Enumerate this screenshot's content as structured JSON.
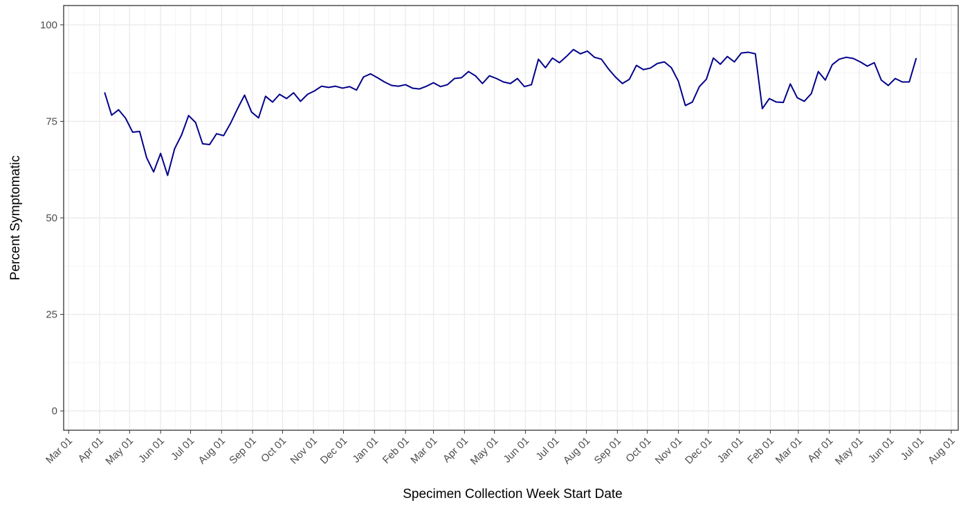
{
  "chart_data": {
    "type": "line",
    "x_label": "Specimen Collection Week Start Date",
    "y_label": "Percent Symptomatic",
    "x": [
      36,
      43,
      50,
      57,
      64,
      71,
      78,
      85,
      92,
      99,
      106,
      113,
      120,
      127,
      134,
      141,
      148,
      155,
      162,
      169,
      176,
      183,
      190,
      197,
      204,
      211,
      218,
      225,
      232,
      239,
      246,
      253,
      260,
      267,
      274,
      281,
      288,
      295,
      302,
      309,
      316,
      323,
      330,
      337,
      344,
      351,
      358,
      365,
      372,
      379,
      386,
      393,
      400,
      407,
      414,
      421,
      428,
      435,
      442,
      449,
      456,
      463,
      470,
      477,
      484,
      491,
      498,
      505,
      512,
      519,
      526,
      533,
      540,
      547,
      554,
      561,
      568,
      575,
      582,
      589,
      596,
      603,
      610,
      617,
      624,
      631,
      638,
      645,
      652,
      659,
      666,
      673,
      680,
      687,
      694,
      701,
      708,
      715,
      722,
      729,
      736,
      743,
      750,
      757,
      764,
      771,
      778,
      785,
      792,
      799,
      806,
      813,
      820,
      827,
      834,
      841,
      848
    ],
    "series": [
      {
        "color": "#00008b",
        "values": [
          82.5,
          76.6,
          78,
          75.8,
          72.2,
          72.4,
          65.6,
          61.9,
          66.7,
          61,
          67.9,
          71.5,
          76.5,
          74.7,
          69.2,
          69,
          71.8,
          71.3,
          74.5,
          78.3,
          81.8,
          77.4,
          75.9,
          81.5,
          80,
          82,
          80.9,
          82.4,
          80.2,
          82,
          82.9,
          84.1,
          83.8,
          84.1,
          83.6,
          84,
          83.1,
          86.5,
          87.3,
          86.3,
          85.2,
          84.3,
          84.1,
          84.5,
          83.6,
          83.4,
          84.1,
          85,
          84,
          84.5,
          86.1,
          86.3,
          87.9,
          86.8,
          84.8,
          86.8,
          86.1,
          85.2,
          84.8,
          86.1,
          84,
          84.5,
          91.1,
          88.9,
          91.4,
          90.2,
          91.8,
          93.6,
          92.5,
          93.2,
          91.6,
          91.1,
          88.6,
          86.5,
          84.8,
          85.9,
          89.5,
          88.4,
          88.8,
          90,
          90.4,
          88.9,
          85.4,
          79.1,
          80,
          84,
          85.9,
          91.4,
          89.8,
          91.8,
          90.4,
          92.7,
          92.9,
          92.5,
          78.3,
          80.9,
          80,
          79.9,
          84.7,
          81.1,
          80.2,
          82.2,
          87.9,
          85.7,
          89.7,
          91.1,
          91.6,
          91.3,
          90.4,
          89.3,
          90.2,
          85.7,
          84.3,
          86.1,
          85.2,
          85.2,
          91.4
        ]
      }
    ],
    "xlim": [
      -5,
      890
    ],
    "xticks": [
      {
        "value": 0,
        "label": "Mar 01"
      },
      {
        "value": 31,
        "label": "Apr 01"
      },
      {
        "value": 61,
        "label": "May 01"
      },
      {
        "value": 92,
        "label": "Jun 01"
      },
      {
        "value": 122,
        "label": "Jul 01"
      },
      {
        "value": 153,
        "label": "Aug 01"
      },
      {
        "value": 184,
        "label": "Sep 01"
      },
      {
        "value": 214,
        "label": "Oct 01"
      },
      {
        "value": 245,
        "label": "Nov 01"
      },
      {
        "value": 275,
        "label": "Dec 01"
      },
      {
        "value": 306,
        "label": "Jan 01"
      },
      {
        "value": 337,
        "label": "Feb 01"
      },
      {
        "value": 365,
        "label": "Mar 01"
      },
      {
        "value": 396,
        "label": "Apr 01"
      },
      {
        "value": 426,
        "label": "May 01"
      },
      {
        "value": 457,
        "label": "Jun 01"
      },
      {
        "value": 487,
        "label": "Jul 01"
      },
      {
        "value": 518,
        "label": "Aug 01"
      },
      {
        "value": 549,
        "label": "Sep 01"
      },
      {
        "value": 579,
        "label": "Oct 01"
      },
      {
        "value": 610,
        "label": "Nov 01"
      },
      {
        "value": 640,
        "label": "Dec 01"
      },
      {
        "value": 671,
        "label": "Jan 01"
      },
      {
        "value": 702,
        "label": "Feb 01"
      },
      {
        "value": 730,
        "label": "Mar 01"
      },
      {
        "value": 761,
        "label": "Apr 01"
      },
      {
        "value": 791,
        "label": "May 01"
      },
      {
        "value": 822,
        "label": "Jun 01"
      },
      {
        "value": 852,
        "label": "Jul 01"
      },
      {
        "value": 883,
        "label": "Aug 01"
      }
    ],
    "ylim": [
      -5,
      105
    ],
    "yticks": [
      0,
      25,
      50,
      75,
      100
    ],
    "grid": true
  }
}
